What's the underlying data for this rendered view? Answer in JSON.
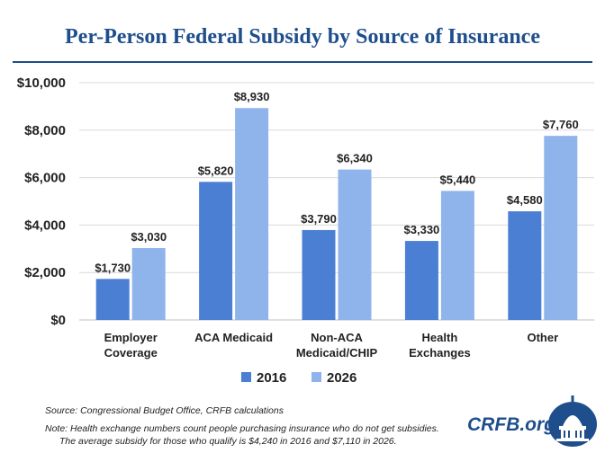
{
  "header": {
    "title": "Per-Person Federal Subsidy by Source of Insurance"
  },
  "chart_data": {
    "type": "bar",
    "title": "Per-Person Federal Subsidy by Source of Insurance",
    "categories": [
      [
        "Employer",
        "Coverage"
      ],
      [
        "ACA Medicaid"
      ],
      [
        "Non-ACA",
        "Medicaid/CHIP"
      ],
      [
        "Health",
        "Exchanges"
      ],
      [
        "Other"
      ]
    ],
    "series": [
      {
        "name": "2016",
        "color": "#4a7fd4",
        "values": [
          1730,
          5820,
          3790,
          3330,
          4580
        ],
        "labels": [
          "$1,730",
          "$5,820",
          "$3,790",
          "$3,330",
          "$4,580"
        ]
      },
      {
        "name": "2026",
        "color": "#8fb4ec",
        "values": [
          3030,
          8930,
          6340,
          5440,
          7760
        ],
        "labels": [
          "$3,030",
          "$8,930",
          "$6,340",
          "$5,440",
          "$7,760"
        ]
      }
    ],
    "y_ticks": [
      0,
      2000,
      4000,
      6000,
      8000,
      10000
    ],
    "y_tick_labels": [
      "$0",
      "$2,000",
      "$4,000",
      "$6,000",
      "$8,000",
      "$10,000"
    ],
    "ylim": [
      0,
      10000
    ],
    "grid": true,
    "legend_position": "bottom-center",
    "xlabel": "",
    "ylabel": ""
  },
  "footer": {
    "source": "Source: Congressional Budget Office, CRFB calculations",
    "note_line1": "Note: Health exchange numbers count people purchasing insurance who do not get subsidies.",
    "note_line2": "The average subsidy for those who qualify is $4,240 in 2016 and $7,110 in 2026."
  },
  "logo": {
    "text": "CRFB.org",
    "icon": "capitol-dome-icon"
  }
}
